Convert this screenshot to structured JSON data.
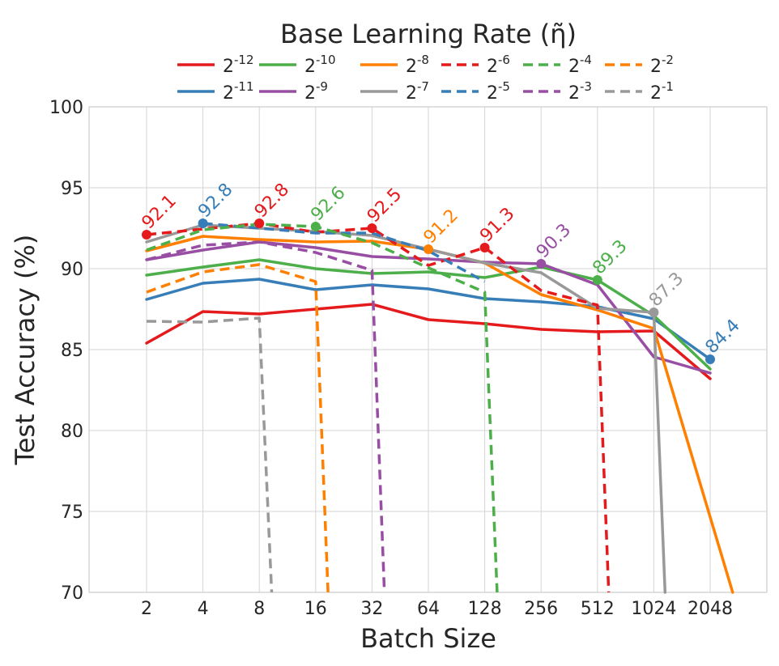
{
  "chart_data": {
    "type": "line",
    "title": "Base Learning Rate (η̃)",
    "xlabel": "Batch Size",
    "ylabel": "Test Accuracy (%)",
    "categories": [
      "2",
      "4",
      "8",
      "16",
      "32",
      "64",
      "128",
      "256",
      "512",
      "1024",
      "2048"
    ],
    "ylim": [
      70,
      100
    ],
    "yticks": [
      "70",
      "75",
      "80",
      "85",
      "90",
      "95",
      "100"
    ],
    "grid": true,
    "legend_placement": "top-center",
    "series": [
      {
        "name": "2^-12",
        "base": "2",
        "exp": "-12",
        "color": "#e41a1c",
        "dash": false,
        "values": [
          85.4,
          87.35,
          87.2,
          87.5,
          87.8,
          86.85,
          86.6,
          86.25,
          86.1,
          86.15,
          83.2
        ]
      },
      {
        "name": "2^-11",
        "base": "2",
        "exp": "-11",
        "color": "#377eb8",
        "dash": false,
        "values": [
          88.1,
          89.1,
          89.35,
          88.7,
          89.0,
          88.75,
          88.15,
          87.95,
          87.65,
          86.9,
          84.4
        ]
      },
      {
        "name": "2^-10",
        "base": "2",
        "exp": "-10",
        "color": "#4daf4a",
        "dash": false,
        "values": [
          89.6,
          90.1,
          90.55,
          90.0,
          89.7,
          89.8,
          89.45,
          90.1,
          89.3,
          87.1,
          83.8
        ]
      },
      {
        "name": "2^-9",
        "base": "2",
        "exp": "-9",
        "color": "#984ea3",
        "dash": false,
        "values": [
          90.55,
          91.15,
          91.65,
          91.3,
          90.75,
          90.6,
          90.4,
          90.3,
          89.0,
          84.55,
          83.55
        ]
      },
      {
        "name": "2^-8",
        "base": "2",
        "exp": "-8",
        "color": "#ff7f00",
        "dash": false,
        "values": [
          91.1,
          92.0,
          91.8,
          91.65,
          91.7,
          91.2,
          90.35,
          88.4,
          87.45,
          86.3,
          null
        ],
        "cutoff": 10.4
      },
      {
        "name": "2^-7",
        "base": "2",
        "exp": "-7",
        "color": "#999999",
        "dash": false,
        "values": [
          91.65,
          92.7,
          92.5,
          92.3,
          92.05,
          91.2,
          90.35,
          89.75,
          87.55,
          87.3,
          null
        ],
        "cutoff": 9.2
      },
      {
        "name": "2^-6",
        "base": "2",
        "exp": "-6",
        "color": "#e41a1c",
        "dash": true,
        "values": [
          92.1,
          92.45,
          92.8,
          92.25,
          92.5,
          90.2,
          91.3,
          88.65,
          87.75,
          null,
          null
        ],
        "cutoff": 8.2
      },
      {
        "name": "2^-5",
        "base": "2",
        "exp": "-5",
        "color": "#377eb8",
        "dash": true,
        "values": [
          null,
          92.8,
          92.5,
          92.2,
          92.2,
          91.1,
          89.2,
          null,
          null,
          null,
          null
        ]
      },
      {
        "name": "2^-4",
        "base": "2",
        "exp": "-4",
        "color": "#4daf4a",
        "dash": true,
        "values": [
          91.15,
          92.4,
          92.75,
          92.6,
          91.6,
          90.05,
          88.55,
          null,
          null,
          null,
          null
        ],
        "cutoff": 6.22
      },
      {
        "name": "2^-3",
        "base": "2",
        "exp": "-3",
        "color": "#984ea3",
        "dash": true,
        "values": [
          90.55,
          91.45,
          91.65,
          91.0,
          89.9,
          null,
          null,
          null,
          null,
          null,
          null
        ],
        "cutoff": 4.22
      },
      {
        "name": "2^-2",
        "base": "2",
        "exp": "-2",
        "color": "#ff7f00",
        "dash": true,
        "values": [
          88.55,
          89.8,
          90.25,
          89.2,
          null,
          null,
          null,
          null,
          null,
          null,
          null
        ],
        "cutoff": 3.22
      },
      {
        "name": "2^-1",
        "base": "2",
        "exp": "-1",
        "color": "#999999",
        "dash": true,
        "values": [
          86.75,
          86.7,
          86.95,
          null,
          null,
          null,
          null,
          null,
          null,
          null,
          null
        ],
        "cutoff": 2.22
      }
    ],
    "annotations": [
      {
        "label": "92.1",
        "x_index": 0,
        "y": 92.1,
        "color": "#e41a1c"
      },
      {
        "label": "92.8",
        "x_index": 1,
        "y": 92.8,
        "color": "#377eb8"
      },
      {
        "label": "92.8",
        "x_index": 2,
        "y": 92.8,
        "color": "#e41a1c"
      },
      {
        "label": "92.6",
        "x_index": 3,
        "y": 92.6,
        "color": "#4daf4a"
      },
      {
        "label": "92.5",
        "x_index": 4,
        "y": 92.5,
        "color": "#e41a1c"
      },
      {
        "label": "91.2",
        "x_index": 5,
        "y": 91.2,
        "color": "#ff7f00"
      },
      {
        "label": "91.3",
        "x_index": 6,
        "y": 91.3,
        "color": "#e41a1c"
      },
      {
        "label": "90.3",
        "x_index": 7,
        "y": 90.3,
        "color": "#984ea3"
      },
      {
        "label": "89.3",
        "x_index": 8,
        "y": 89.3,
        "color": "#4daf4a"
      },
      {
        "label": "87.3",
        "x_index": 9,
        "y": 87.3,
        "color": "#999999"
      },
      {
        "label": "84.4",
        "x_index": 10,
        "y": 84.4,
        "color": "#377eb8"
      }
    ]
  }
}
